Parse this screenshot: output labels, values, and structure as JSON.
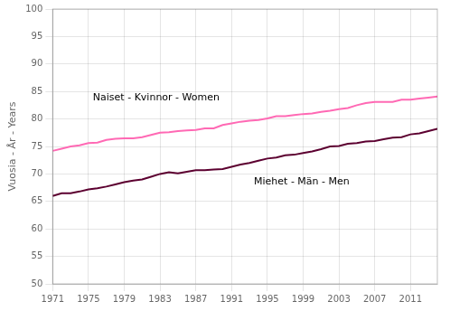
{
  "chart_data": {
    "type": "line",
    "ylabel": "Vuosia - År - Years",
    "x": [
      1971,
      1972,
      1973,
      1974,
      1975,
      1976,
      1977,
      1978,
      1979,
      1980,
      1981,
      1982,
      1983,
      1984,
      1985,
      1986,
      1987,
      1988,
      1989,
      1990,
      1991,
      1992,
      1993,
      1994,
      1995,
      1996,
      1997,
      1998,
      1999,
      2000,
      2001,
      2002,
      2003,
      2004,
      2005,
      2006,
      2007,
      2008,
      2009,
      2010,
      2011,
      2012,
      2013,
      2014
    ],
    "series": [
      {
        "color": "#FF69B4",
        "values": [
          74.2,
          74.6,
          75.0,
          75.2,
          75.6,
          75.7,
          76.2,
          76.4,
          76.5,
          76.5,
          76.7,
          77.1,
          77.5,
          77.6,
          77.8,
          77.9,
          78.0,
          78.3,
          78.3,
          78.9,
          79.2,
          79.5,
          79.7,
          79.8,
          80.1,
          80.5,
          80.5,
          80.7,
          80.9,
          81.0,
          81.3,
          81.5,
          81.8,
          82.0,
          82.5,
          82.9,
          83.1,
          83.1,
          83.1,
          83.5,
          83.5,
          83.7,
          83.9,
          84.1
        ]
      },
      {
        "color": "#5C0030",
        "values": [
          66.0,
          66.5,
          66.5,
          66.8,
          67.2,
          67.4,
          67.7,
          68.1,
          68.5,
          68.8,
          69.0,
          69.5,
          70.0,
          70.3,
          70.1,
          70.4,
          70.7,
          70.7,
          70.8,
          70.9,
          71.3,
          71.7,
          72.0,
          72.4,
          72.8,
          73.0,
          73.4,
          73.5,
          73.8,
          74.1,
          74.5,
          75.0,
          75.1,
          75.5,
          75.6,
          75.9,
          76.0,
          76.3,
          76.6,
          76.7,
          77.2,
          77.4,
          77.8,
          78.2
        ]
      }
    ],
    "annotations": [
      {
        "text": "Naiset - Kvinnor - Women",
        "x": 1975.5,
        "y": 83.8
      },
      {
        "text": "Miehet - Män - Men",
        "x": 1993.5,
        "y": 68.5
      }
    ],
    "xlim": [
      1971,
      2014
    ],
    "xticks": [
      1971,
      1975,
      1979,
      1983,
      1987,
      1991,
      1995,
      1999,
      2003,
      2007,
      2011
    ],
    "ylim": [
      50,
      100
    ],
    "yticks": [
      50,
      55,
      60,
      65,
      70,
      75,
      80,
      85,
      90,
      95,
      100
    ],
    "grid": true
  }
}
